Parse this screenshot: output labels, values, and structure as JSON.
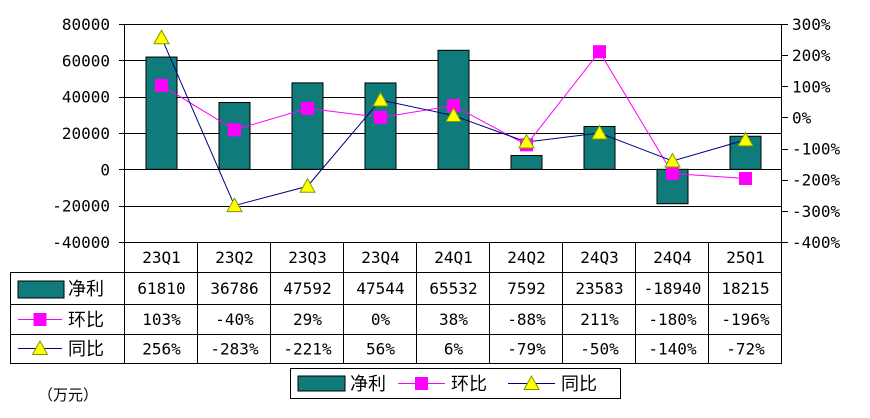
{
  "chart_data": {
    "type": "bar",
    "categories": [
      "23Q1",
      "23Q2",
      "23Q3",
      "23Q4",
      "24Q1",
      "24Q2",
      "24Q3",
      "24Q4",
      "25Q1"
    ],
    "series": [
      {
        "name": "净利",
        "type": "bar",
        "axis": "left",
        "color": "#0f7b7b",
        "border_color": "#000000",
        "values": [
          61810,
          36786,
          47592,
          47544,
          65532,
          7592,
          23583,
          -18940,
          18215
        ]
      },
      {
        "name": "环比",
        "type": "line",
        "axis": "right",
        "unit": "%",
        "marker": "square",
        "color": "#ff00ff",
        "marker_color": "#ff00ff",
        "values": [
          103,
          -40,
          29,
          0,
          38,
          -88,
          211,
          -180,
          -196
        ]
      },
      {
        "name": "同比",
        "type": "line",
        "axis": "right",
        "unit": "%",
        "marker": "triangle",
        "color": "#000080",
        "marker_color": "#ffff00",
        "marker_border_color": "#7f9a00",
        "values": [
          256,
          -283,
          -221,
          56,
          6,
          -79,
          -50,
          -140,
          -72
        ]
      }
    ],
    "y_left": {
      "min": -40000,
      "max": 80000,
      "step": 20000
    },
    "y_right": {
      "min": -400,
      "max": 300,
      "step": 100,
      "unit": "%"
    },
    "unit_note": "（万元）",
    "grid": true,
    "data_table": true,
    "legend": "bottom"
  }
}
